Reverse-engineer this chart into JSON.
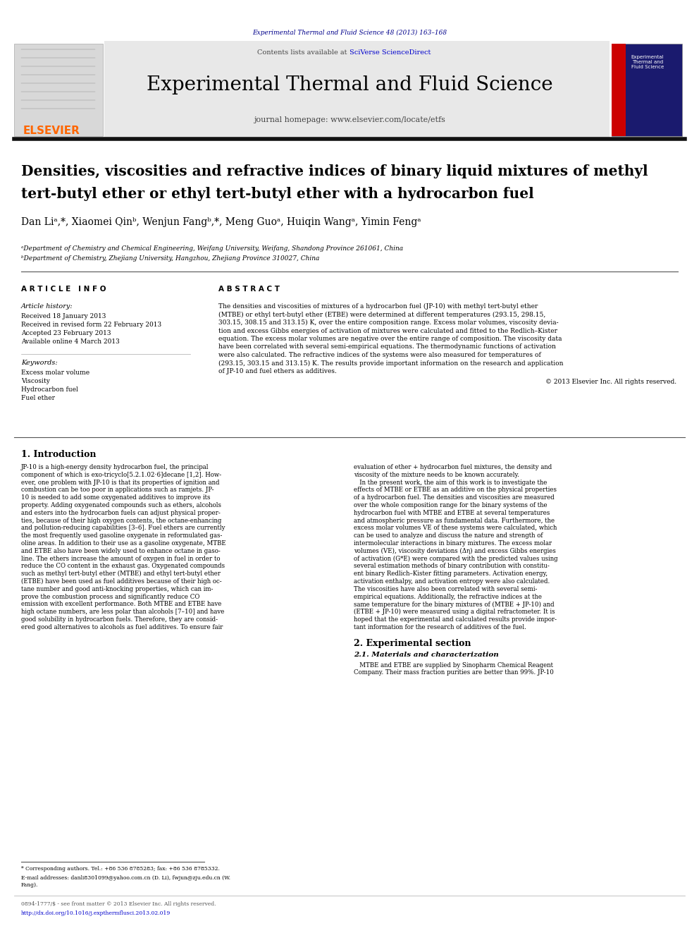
{
  "fig_width": 9.92,
  "fig_height": 13.23,
  "bg_color": "#ffffff",
  "top_journal_ref": "Experimental Thermal and Fluid Science 48 (2013) 163–168",
  "top_journal_ref_color": "#00008B",
  "header_bg": "#e8e8e8",
  "header_journal_name": "Experimental Thermal and Fluid Science",
  "header_homepage": "journal homepage: www.elsevier.com/locate/etfs",
  "header_contents": "Contents lists available at ",
  "header_sciverse": "SciVerse ScienceDirect",
  "elsevier_color": "#FF6600",
  "paper_title_line1": "Densities, viscosities and refractive indices of binary liquid mixtures of methyl",
  "paper_title_line2": "tert-butyl ether or ethyl tert-butyl ether with a hydrocarbon fuel",
  "authors": "Dan Liᵃ,*, Xiaomei Qinᵇ, Wenjun Fangᵇ,*, Meng Guoᵃ, Huiqin Wangᵃ, Yimin Fengᵃ",
  "affil_a": "ᵃDepartment of Chemistry and Chemical Engineering, Weifang University, Weifang, Shandong Province 261061, China",
  "affil_b": "ᵇDepartment of Chemistry, Zhejiang University, Hangzhou, Zhejiang Province 310027, China",
  "article_info_label": "A R T I C L E   I N F O",
  "abstract_label": "A B S T R A C T",
  "article_history_label": "Article history:",
  "received_label": "Received 18 January 2013",
  "revised_label": "Received in revised form 22 February 2013",
  "accepted_label": "Accepted 23 February 2013",
  "available_label": "Available online 4 March 2013",
  "keywords_label": "Keywords:",
  "kw1": "Excess molar volume",
  "kw2": "Viscosity",
  "kw3": "Hydrocarbon fuel",
  "kw4": "Fuel ether",
  "abstract_text": "The densities and viscosities of mixtures of a hydrocarbon fuel (JP-10) with methyl tert-butyl ether\n(MTBE) or ethyl tert-butyl ether (ETBE) were determined at different temperatures (293.15, 298.15,\n303.15, 308.15 and 313.15) K, over the entire composition range. Excess molar volumes, viscosity devia-\ntion and excess Gibbs energies of activation of mixtures were calculated and fitted to the Redlich–Kister\nequation. The excess molar volumes are negative over the entire range of composition. The viscosity data\nhave been correlated with several semi-empirical equations. The thermodynamic functions of activation\nwere also calculated. The refractive indices of the systems were also measured for temperatures of\n(293.15, 303.15 and 313.15) K. The results provide important information on the research and application\nof JP-10 and fuel ethers as additives.",
  "copyright": "© 2013 Elsevier Inc. All rights reserved.",
  "intro_heading": "1. Introduction",
  "intro_text_col1": "JP-10 is a high-energy density hydrocarbon fuel, the principal\ncomponent of which is exo-tricyclo[5.2.1.02⋅6]decane [1,2]. How-\never, one problem with JP-10 is that its properties of ignition and\ncombustion can be too poor in applications such as ramjets. JP-\n10 is needed to add some oxygenated additives to improve its\nproperty. Adding oxygenated compounds such as ethers, alcohols\nand esters into the hydrocarbon fuels can adjust physical proper-\nties, because of their high oxygen contents, the octane-enhancing\nand pollution-reducing capabilities [3–6]. Fuel ethers are currently\nthe most frequently used gasoline oxygenate in reformulated gas-\noline areas. In addition to their use as a gasoline oxygenate, MTBE\nand ETBE also have been widely used to enhance octane in gaso-\nline. The ethers increase the amount of oxygen in fuel in order to\nreduce the CO content in the exhaust gas. Oxygenated compounds\nsuch as methyl tert-butyl ether (MTBE) and ethyl tert-butyl ether\n(ETBE) have been used as fuel additives because of their high oc-\ntane number and good anti-knocking properties, which can im-\nprove the combustion process and significantly reduce CO\nemission with excellent performance. Both MTBE and ETBE have\nhigh octane numbers, are less polar than alcohols [7–10] and have\ngood solubility in hydrocarbon fuels. Therefore, they are consid-\nered good alternatives to alcohols as fuel additives. To ensure fair",
  "intro_text_col2": "evaluation of ether + hydrocarbon fuel mixtures, the density and\nviscosity of the mixture needs to be known accurately.\n   In the present work, the aim of this work is to investigate the\neffects of MTBE or ETBE as an additive on the physical properties\nof a hydrocarbon fuel. The densities and viscosities are measured\nover the whole composition range for the binary systems of the\nhydrocarbon fuel with MTBE and ETBE at several temperatures\nand atmospheric pressure as fundamental data. Furthermore, the\nexcess molar volumes VE of these systems were calculated, which\ncan be used to analyze and discuss the nature and strength of\nintermolecular interactions in binary mixtures. The excess molar\nvolumes (VE), viscosity deviations (Δη) and excess Gibbs energies\nof activation (G*E) were compared with the predicted values using\nseveral estimation methods of binary contribution with constitu-\nent binary Redlich–Kister fitting parameters. Activation energy,\nactivation enthalpy, and activation entropy were also calculated.\nThe viscosities have also been correlated with several semi-\nempirical equations. Additionally, the refractive indices at the\nsame temperature for the binary mixtures of (MTBE + JP-10) and\n(ETBE + JP-10) were measured using a digital refractometer. It is\nhoped that the experimental and calculated results provide impor-\ntant information for the research of additives of the fuel.",
  "section2_heading": "2. Experimental section",
  "section21_heading": "2.1. Materials and characterization",
  "section21_text": "   MTBE and ETBE are supplied by Sinopharm Chemical Reagent\nCompany. Their mass fraction purities are better than 99%. JP-10",
  "footnote_star": "* Corresponding authors. Tel.: +86 536 8785283; fax: +86 536 8785332.",
  "footnote_email": "E-mail addresses: danli8301099@yahoo.com.cn (D. Li), fwjun@zju.edu.cn (W.\nFang).",
  "footer_issn": "0894-1777/$ - see front matter © 2013 Elsevier Inc. All rights reserved.",
  "footer_doi": "http://dx.doi.org/10.1016/j.expthermflusci.2013.02.019"
}
